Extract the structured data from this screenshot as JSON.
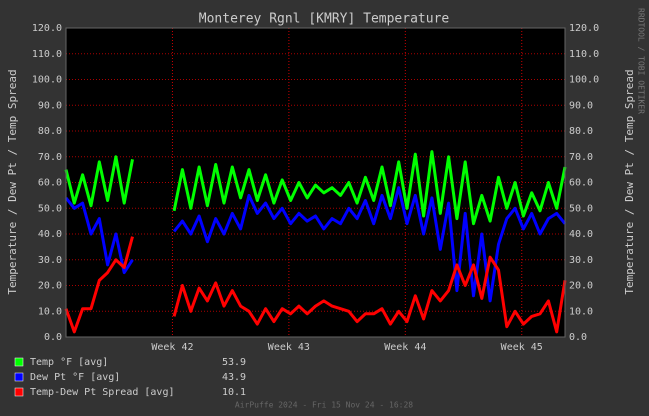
{
  "chart_data": {
    "type": "line",
    "title": "Monterey Rgnl [KMRY] Temperature",
    "ylabel": "Temperature / Dew Pt / Temp Spread",
    "y2label": "Temperature / Dew Pt / Temp Spread",
    "side_text": "RRDTOOL / TOBI OETIKER",
    "footer": "AirPuffe 2024 - Fri 15 Nov 24 - 16:28",
    "x": [
      0,
      0.5,
      1,
      1.5,
      2,
      2.5,
      3,
      3.5,
      4,
      4.5,
      5,
      5.5,
      6,
      6.5,
      7,
      7.5,
      8,
      8.5,
      9,
      9.5,
      10,
      10.5,
      11,
      11.5,
      12,
      12.5,
      13,
      13.5,
      14,
      14.5,
      15,
      15.5,
      16,
      16.5,
      17,
      17.5,
      18,
      18.5,
      19,
      19.5,
      20,
      20.5,
      21,
      21.5,
      22,
      22.5,
      23,
      23.5,
      24,
      24.5,
      25,
      25.5,
      26,
      26.5,
      27,
      27.5,
      28,
      28.5,
      29,
      29.5,
      30
    ],
    "xlim": [
      0,
      30
    ],
    "xticks": [
      {
        "value": 6.4,
        "label": "Week 42"
      },
      {
        "value": 13.4,
        "label": "Week 43"
      },
      {
        "value": 20.4,
        "label": "Week 44"
      },
      {
        "value": 27.4,
        "label": "Week 45"
      }
    ],
    "ylim": [
      0,
      120
    ],
    "yticks": [
      {
        "value": 0,
        "label": "0.0"
      },
      {
        "value": 10,
        "label": "10.0"
      },
      {
        "value": 20,
        "label": "20.0"
      },
      {
        "value": 30,
        "label": "30.0"
      },
      {
        "value": 40,
        "label": "40.0"
      },
      {
        "value": 50,
        "label": "50.0"
      },
      {
        "value": 60,
        "label": "60.0"
      },
      {
        "value": 70,
        "label": "70.0"
      },
      {
        "value": 80,
        "label": "80.0"
      },
      {
        "value": 90,
        "label": "90.0"
      },
      {
        "value": 100,
        "label": "100.0"
      },
      {
        "value": 110,
        "label": "110.0"
      },
      {
        "value": 120,
        "label": "120.0"
      }
    ],
    "y2lim": [
      0,
      120
    ],
    "y2ticks": [
      {
        "value": 0,
        "label": "0.0"
      },
      {
        "value": 10,
        "label": "10.0"
      },
      {
        "value": 20,
        "label": "20.0"
      },
      {
        "value": 30,
        "label": "30.0"
      },
      {
        "value": 40,
        "label": "40.0"
      },
      {
        "value": 50,
        "label": "50.0"
      },
      {
        "value": 60,
        "label": "60.0"
      },
      {
        "value": 70,
        "label": "70.0"
      },
      {
        "value": 80,
        "label": "80.0"
      },
      {
        "value": 90,
        "label": "90.0"
      },
      {
        "value": 100,
        "label": "100.0"
      },
      {
        "value": 110,
        "label": "110.0"
      },
      {
        "value": 120,
        "label": "120.0"
      }
    ],
    "grid": true,
    "series": [
      {
        "name": "Temp °F [avg]",
        "avg": 53.9,
        "color": "#00ff00",
        "values": [
          65,
          52,
          63,
          51,
          68,
          53,
          70,
          52,
          69,
          null,
          null,
          null,
          null,
          49,
          65,
          50,
          66,
          51,
          67,
          52,
          66,
          54,
          65,
          53,
          63,
          52,
          61,
          53,
          60,
          54,
          59,
          56,
          58,
          55,
          60,
          52,
          62,
          53,
          66,
          51,
          68,
          50,
          71,
          47,
          72,
          48,
          70,
          46,
          68,
          44,
          55,
          45,
          62,
          50,
          60,
          47,
          56,
          49,
          60,
          50,
          66
        ]
      },
      {
        "name": "Dew Pt °F [avg]",
        "avg": 43.9,
        "color": "#0000ff",
        "values": [
          54,
          50,
          52,
          40,
          46,
          28,
          40,
          25,
          30,
          null,
          null,
          null,
          null,
          41,
          45,
          40,
          47,
          37,
          46,
          40,
          48,
          42,
          55,
          48,
          52,
          46,
          50,
          44,
          48,
          45,
          47,
          42,
          46,
          44,
          50,
          46,
          53,
          44,
          55,
          46,
          58,
          44,
          55,
          40,
          54,
          34,
          52,
          18,
          48,
          16,
          40,
          14,
          36,
          46,
          50,
          42,
          48,
          40,
          46,
          48,
          44
        ]
      },
      {
        "name": "Temp-Dew Pt Spread [avg]",
        "avg": 10.1,
        "color": "#ff0000",
        "values": [
          11,
          2,
          11,
          11,
          22,
          25,
          30,
          27,
          39,
          null,
          null,
          null,
          null,
          8,
          20,
          10,
          19,
          14,
          21,
          12,
          18,
          12,
          10,
          5,
          11,
          6,
          11,
          9,
          12,
          9,
          12,
          14,
          12,
          11,
          10,
          6,
          9,
          9,
          11,
          5,
          10,
          6,
          16,
          7,
          18,
          14,
          18,
          28,
          20,
          28,
          15,
          31,
          26,
          4,
          10,
          5,
          8,
          9,
          14,
          2,
          22
        ]
      }
    ]
  }
}
